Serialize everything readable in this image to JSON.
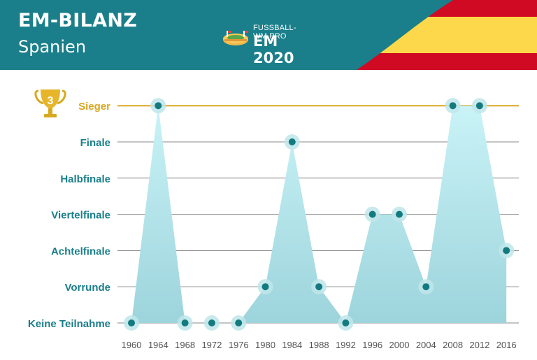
{
  "header": {
    "title": "EM-BILANZ",
    "subtitle": "Spanien",
    "brand_site": "FUSSBALL-WM.PRO",
    "brand_event": "EM 2020"
  },
  "colors": {
    "header_bg": "#1a7f8a",
    "flag_red": "#cf0a22",
    "flag_yellow": "#fcd84a",
    "label_teal": "#1a7f8a",
    "winner_line": "#d8a820",
    "area_top": "#c9f3f7",
    "area_bottom": "#9dd4dc",
    "point": "#137a80"
  },
  "trophy": {
    "icon": "trophy-icon",
    "count": "3"
  },
  "chart_data": {
    "type": "area",
    "title": "EM-BILANZ",
    "subtitle": "Spanien",
    "categories": [
      "1960",
      "1964",
      "1968",
      "1972",
      "1976",
      "1980",
      "1984",
      "1988",
      "1992",
      "1996",
      "2000",
      "2004",
      "2008",
      "2012",
      "2016"
    ],
    "y_categories": [
      "Keine Teilnahme",
      "Vorrunde",
      "Achtelfinale",
      "Viertelfinale",
      "Halbfinale",
      "Finale",
      "Sieger"
    ],
    "values": [
      0,
      6,
      0,
      0,
      0,
      1,
      5,
      1,
      0,
      3,
      3,
      1,
      6,
      6,
      2
    ],
    "ylim": [
      0,
      6
    ],
    "grid": true,
    "legend": "none"
  }
}
